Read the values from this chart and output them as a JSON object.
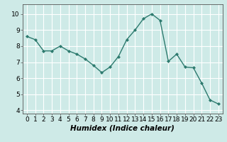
{
  "x": [
    0,
    1,
    2,
    3,
    4,
    5,
    6,
    7,
    8,
    9,
    10,
    11,
    12,
    13,
    14,
    15,
    16,
    17,
    18,
    19,
    20,
    21,
    22,
    23
  ],
  "y": [
    8.6,
    8.4,
    7.7,
    7.7,
    8.0,
    7.7,
    7.5,
    7.2,
    6.8,
    6.35,
    6.7,
    7.35,
    8.4,
    9.0,
    9.7,
    10.0,
    9.6,
    7.05,
    7.5,
    6.7,
    6.65,
    5.7,
    4.65,
    4.4
  ],
  "line_color": "#2d7a6e",
  "marker": "D",
  "marker_size": 2.0,
  "linewidth": 1.0,
  "xlabel": "Humidex (Indice chaleur)",
  "xlim": [
    -0.5,
    23.5
  ],
  "ylim": [
    3.8,
    10.6
  ],
  "yticks": [
    4,
    5,
    6,
    7,
    8,
    9,
    10
  ],
  "xticks": [
    0,
    1,
    2,
    3,
    4,
    5,
    6,
    7,
    8,
    9,
    10,
    11,
    12,
    13,
    14,
    15,
    16,
    17,
    18,
    19,
    20,
    21,
    22,
    23
  ],
  "bg_color": "#ceeae7",
  "grid_color": "#ffffff",
  "xlabel_fontsize": 7.5,
  "tick_fontsize": 6.5,
  "spine_color": "#555555"
}
